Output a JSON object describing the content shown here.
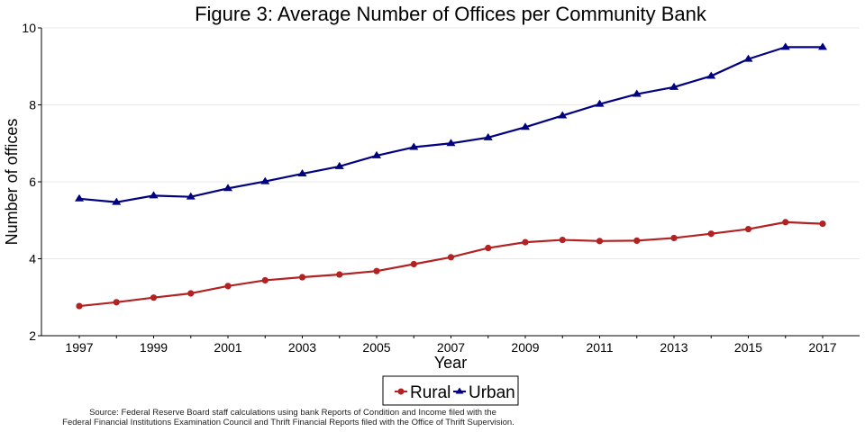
{
  "chart_data": {
    "type": "line",
    "title": "Figure 3: Average Number of Offices per Community Bank",
    "xlabel": "Year",
    "ylabel": "Number of offices",
    "x": [
      1997,
      1998,
      1999,
      2000,
      2001,
      2002,
      2003,
      2004,
      2005,
      2006,
      2007,
      2008,
      2009,
      2010,
      2011,
      2012,
      2013,
      2014,
      2015,
      2016,
      2017
    ],
    "xticks": [
      "1997",
      "1999",
      "2001",
      "2003",
      "2005",
      "2007",
      "2009",
      "2011",
      "2013",
      "2015",
      "2017"
    ],
    "xlim": [
      1996,
      2018
    ],
    "ylim": [
      2,
      10
    ],
    "yticks": [
      "2",
      "4",
      "6",
      "8",
      "10"
    ],
    "grid": true,
    "legend_position": "bottom-center",
    "series": [
      {
        "name": "Rural",
        "color": "#b22222",
        "marker": "circle",
        "values": [
          2.77,
          2.87,
          2.99,
          3.1,
          3.29,
          3.44,
          3.52,
          3.59,
          3.68,
          3.86,
          4.04,
          4.28,
          4.43,
          4.49,
          4.46,
          4.47,
          4.54,
          4.65,
          4.77,
          4.95,
          4.91
        ]
      },
      {
        "name": "Urban",
        "color": "#000080",
        "marker": "triangle",
        "values": [
          5.56,
          5.47,
          5.64,
          5.61,
          5.83,
          6.01,
          6.21,
          6.4,
          6.68,
          6.9,
          7.0,
          7.15,
          7.42,
          7.72,
          8.02,
          8.28,
          8.46,
          8.75,
          9.19,
          9.5,
          9.5
        ]
      }
    ],
    "source_lines": [
      "Source: Federal Reserve Board staff calculations using bank Reports of Condition and Income filed with the",
      "Federal Financial Institutions Examination Council and Thrift Financial Reports filed with the Office of Thrift Supervision."
    ]
  }
}
